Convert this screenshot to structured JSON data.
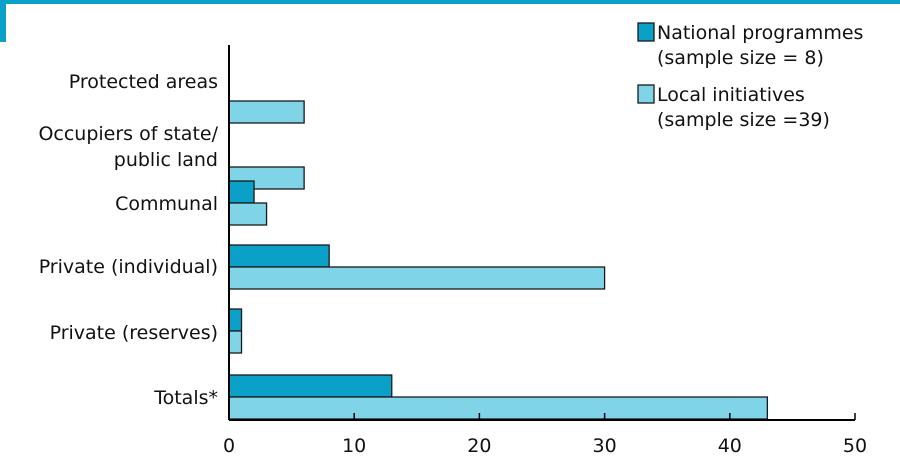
{
  "colors": {
    "accent": "#0aa0c8",
    "national": "#0aa0c8",
    "local": "#80d4e8",
    "bar_stroke": "#1a1a1a",
    "axis": "#000000"
  },
  "chart_data": {
    "type": "bar",
    "orientation": "horizontal",
    "categories": [
      "Protected areas",
      "Occupiers of state/\npublic land",
      "Communal",
      "Private (individual)",
      "Private (reserves)",
      "Totals*"
    ],
    "series": [
      {
        "name": "National programmes\n(sample size = 8)",
        "values": [
          0,
          0,
          2,
          8,
          1,
          13
        ]
      },
      {
        "name": "Local initiatives\n(sample size =39)",
        "values": [
          6,
          6,
          3,
          30,
          1,
          43
        ]
      }
    ],
    "xlim": [
      0,
      50
    ],
    "xticks": [
      0,
      10,
      20,
      30,
      40,
      50
    ],
    "grid": false,
    "legend_position": "top-right"
  }
}
